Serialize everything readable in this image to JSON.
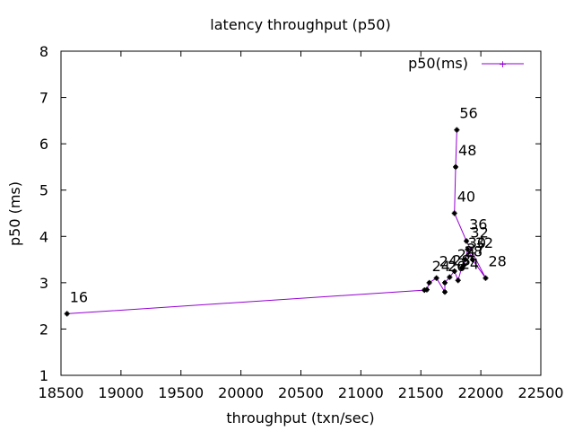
{
  "chart_data": {
    "type": "line",
    "title": "latency throughput (p50)",
    "xlabel": "throughput (txn/sec)",
    "ylabel": "p50 (ms)",
    "xlim": [
      18500,
      22500
    ],
    "ylim": [
      1,
      8
    ],
    "xticks": [
      18500,
      19000,
      19500,
      20000,
      20500,
      21000,
      21500,
      22000,
      22500
    ],
    "yticks": [
      1,
      2,
      3,
      4,
      5,
      6,
      7,
      8
    ],
    "grid": false,
    "legend_position": "top-right",
    "line_color": "#9400d3",
    "marker_color": "#000000",
    "series": [
      {
        "name": "p50(ms)",
        "points": [
          {
            "x": 18550,
            "y": 2.33,
            "label": "16"
          },
          {
            "x": 21530,
            "y": 2.84,
            "label": ""
          },
          {
            "x": 21550,
            "y": 2.85,
            "label": ""
          },
          {
            "x": 21570,
            "y": 3.0,
            "label": "24"
          },
          {
            "x": 21630,
            "y": 3.1,
            "label": "24"
          },
          {
            "x": 21700,
            "y": 2.8,
            "label": ""
          },
          {
            "x": 21700,
            "y": 3.0,
            "label": "26"
          },
          {
            "x": 21740,
            "y": 3.12,
            "label": "28"
          },
          {
            "x": 21780,
            "y": 3.25,
            "label": "24"
          },
          {
            "x": 21810,
            "y": 3.05,
            "label": "24"
          },
          {
            "x": 21840,
            "y": 3.32,
            "label": "28"
          },
          {
            "x": 21860,
            "y": 3.38,
            "label": "27"
          },
          {
            "x": 21870,
            "y": 3.5,
            "label": "30"
          },
          {
            "x": 21890,
            "y": 3.72,
            "label": "32"
          },
          {
            "x": 21930,
            "y": 3.5,
            "label": "32"
          },
          {
            "x": 22040,
            "y": 3.1,
            "label": "28"
          },
          {
            "x": 21880,
            "y": 3.9,
            "label": "36"
          },
          {
            "x": 21780,
            "y": 4.5,
            "label": "40"
          },
          {
            "x": 21790,
            "y": 5.5,
            "label": "48"
          },
          {
            "x": 21800,
            "y": 6.3,
            "label": "56"
          }
        ]
      }
    ]
  }
}
